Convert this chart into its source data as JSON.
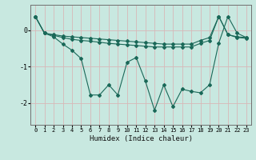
{
  "xlabel": "Humidex (Indice chaleur)",
  "background_color": "#c8e8e0",
  "grid_color": "#b0d8d0",
  "line_color": "#1a6858",
  "x": [
    0,
    1,
    2,
    3,
    4,
    5,
    6,
    7,
    8,
    9,
    10,
    11,
    12,
    13,
    14,
    15,
    16,
    17,
    18,
    19,
    20,
    21,
    22,
    23
  ],
  "s1": [
    0.38,
    -0.08,
    -0.12,
    -0.16,
    -0.18,
    -0.2,
    -0.22,
    -0.24,
    -0.26,
    -0.28,
    -0.3,
    -0.32,
    -0.34,
    -0.36,
    -0.38,
    -0.38,
    -0.38,
    -0.38,
    -0.28,
    -0.2,
    0.38,
    -0.12,
    -0.18,
    -0.2
  ],
  "s2": [
    0.38,
    -0.08,
    -0.14,
    -0.2,
    -0.25,
    -0.28,
    -0.3,
    -0.33,
    -0.36,
    -0.38,
    -0.4,
    -0.42,
    -0.44,
    -0.46,
    -0.46,
    -0.46,
    -0.46,
    -0.46,
    -0.36,
    -0.28,
    0.38,
    -0.12,
    -0.2,
    -0.22
  ],
  "s3": [
    0.38,
    -0.08,
    -0.18,
    -0.38,
    -0.55,
    -0.78,
    -1.78,
    -1.78,
    -1.5,
    -1.78,
    -0.88,
    -0.75,
    -1.4,
    -2.2,
    -1.5,
    -2.1,
    -1.62,
    -1.68,
    -1.72,
    -1.5,
    -0.35,
    0.38,
    -0.08,
    -0.2
  ],
  "ylim": [
    -2.6,
    0.7
  ],
  "xlim": [
    -0.5,
    23.5
  ],
  "yticks": [
    0,
    -1,
    -2
  ],
  "xticks": [
    0,
    1,
    2,
    3,
    4,
    5,
    6,
    7,
    8,
    9,
    10,
    11,
    12,
    13,
    14,
    15,
    16,
    17,
    18,
    19,
    20,
    21,
    22,
    23
  ]
}
